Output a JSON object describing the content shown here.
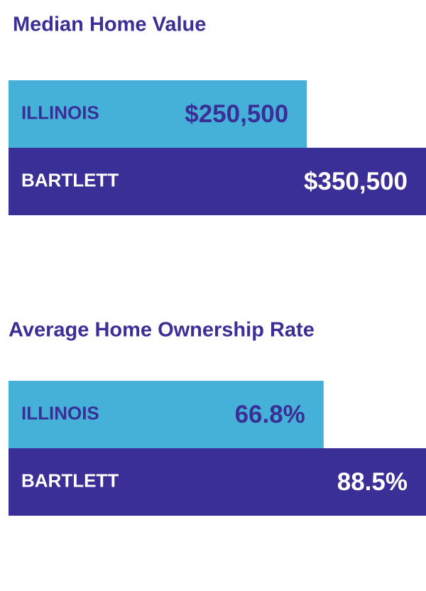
{
  "chart_data": [
    {
      "type": "bar",
      "orientation": "horizontal",
      "title": "Median Home Value",
      "categories": [
        "ILLINOIS",
        "BARTLETT"
      ],
      "values": [
        250500,
        350500
      ],
      "value_labels": [
        "$250,500",
        "$350,500"
      ],
      "colors": [
        "#45b0d8",
        "#3a2f96"
      ],
      "xlim": [
        0,
        350500
      ]
    },
    {
      "type": "bar",
      "orientation": "horizontal",
      "title": "Average Home Ownership Rate",
      "categories": [
        "ILLINOIS",
        "BARTLETT"
      ],
      "values": [
        66.8,
        88.5
      ],
      "value_labels": [
        "66.8%",
        "88.5%"
      ],
      "colors": [
        "#45b0d8",
        "#3a2f96"
      ],
      "xlim": [
        0,
        88.5
      ]
    }
  ]
}
